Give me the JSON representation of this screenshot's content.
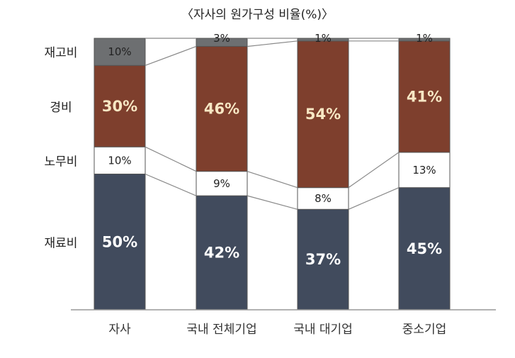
{
  "chart_data": {
    "type": "bar",
    "stacked": true,
    "normalized_percent": true,
    "title": "〈자사의 원가구성 비율(%)〉",
    "categories": [
      "자사",
      "국내 전체기업",
      "국내 대기업",
      "중소기업"
    ],
    "series": [
      {
        "name": "재료비",
        "values": [
          50,
          42,
          37,
          45
        ],
        "labels": [
          "50%",
          "42%",
          "37%",
          "45%"
        ],
        "color": "#414b5d",
        "label_color": "#ffffff"
      },
      {
        "name": "노무비",
        "values": [
          10,
          9,
          8,
          13
        ],
        "labels": [
          "10%",
          "9%",
          "8%",
          "13%"
        ],
        "color": "#ffffff",
        "label_color": "#222222"
      },
      {
        "name": "경비",
        "values": [
          30,
          46,
          54,
          41
        ],
        "labels": [
          "30%",
          "46%",
          "54%",
          "41%"
        ],
        "color": "#7e3f2d",
        "label_color": "#f7e7c4"
      },
      {
        "name": "재고비",
        "values": [
          10,
          3,
          1,
          1
        ],
        "labels": [
          "10%",
          "3%",
          "1%",
          "1%"
        ],
        "color": "#6d6f71",
        "label_color": "#222222"
      }
    ],
    "ylim": [
      0,
      100
    ],
    "legend": "left-side row labels",
    "grid": false,
    "connector_lines": true
  }
}
